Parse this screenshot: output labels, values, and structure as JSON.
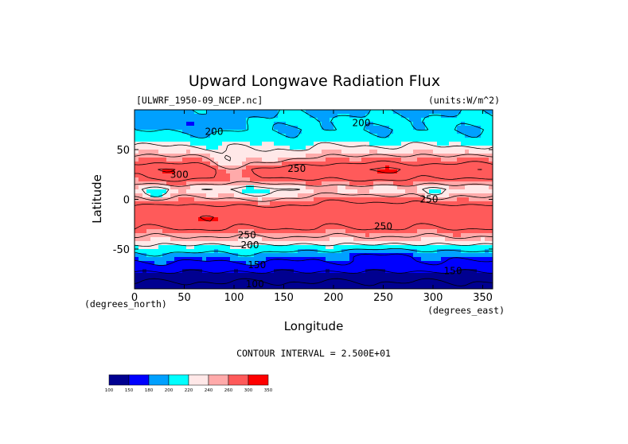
{
  "chart_data": {
    "type": "heatmap",
    "title": "Upward Longwave Radiation Flux",
    "dataset_label": "[ULWRF_1950-09_NCEP.nc]",
    "units_label": "(units:W/m^2)",
    "xlabel": "Longitude",
    "ylabel": "Latitude",
    "x_unit_label": "(degrees_east)",
    "y_unit_label": "(degrees_north)",
    "xlim": [
      0,
      360
    ],
    "ylim": [
      -90,
      90
    ],
    "x_ticks": [
      0,
      50,
      100,
      150,
      200,
      250,
      300,
      350
    ],
    "y_ticks": [
      -50,
      0,
      50
    ],
    "x_tick_labels": [
      "0",
      "50",
      "100",
      "150",
      "200",
      "250",
      "300",
      "350"
    ],
    "y_tick_labels": [
      "-50",
      "0",
      "50"
    ],
    "contour_interval_label": "CONTOUR INTERVAL = 2.500E+01",
    "contour_labels": [
      {
        "text": "200",
        "lon": 80,
        "lat": 68
      },
      {
        "text": "200",
        "lon": 228,
        "lat": 77
      },
      {
        "text": "300",
        "lon": 45,
        "lat": 25
      },
      {
        "text": "250",
        "lon": 163,
        "lat": 31
      },
      {
        "text": "250",
        "lon": 113,
        "lat": -36
      },
      {
        "text": "200",
        "lon": 116,
        "lat": -46
      },
      {
        "text": "250",
        "lon": 250,
        "lat": -27
      },
      {
        "text": "250",
        "lon": 296,
        "lat": 0
      },
      {
        "text": "150",
        "lon": 123,
        "lat": -66
      },
      {
        "text": "150",
        "lon": 320,
        "lat": -72
      },
      {
        "text": "100",
        "lon": 121,
        "lat": -85
      }
    ],
    "color_levels": [
      100,
      150,
      180,
      200,
      220,
      240,
      260,
      300,
      350
    ],
    "color_level_labels": [
      "100",
      "150",
      "180",
      "200",
      "220",
      "240",
      "260",
      "300",
      "350"
    ],
    "colors": [
      "#000090",
      "#0000ff",
      "#00a0ff",
      "#00ffff",
      "#ffe8e8",
      "#ffaaaa",
      "#ff5a5a",
      "#ff0000"
    ],
    "lat_bands": [
      {
        "lat": 90,
        "v": 195
      },
      {
        "lat": 80,
        "v": 205
      },
      {
        "lat": 70,
        "v": 200
      },
      {
        "lat": 60,
        "v": 212
      },
      {
        "lat": 50,
        "v": 232
      },
      {
        "lat": 40,
        "v": 262
      },
      {
        "lat": 30,
        "v": 292
      },
      {
        "lat": 20,
        "v": 272
      },
      {
        "lat": 10,
        "v": 232
      },
      {
        "lat": 0,
        "v": 262
      },
      {
        "lat": -10,
        "v": 288
      },
      {
        "lat": -20,
        "v": 292
      },
      {
        "lat": -30,
        "v": 272
      },
      {
        "lat": -40,
        "v": 242
      },
      {
        "lat": -50,
        "v": 212
      },
      {
        "lat": -60,
        "v": 182
      },
      {
        "lat": -70,
        "v": 158
      },
      {
        "lat": -80,
        "v": 130
      },
      {
        "lat": -90,
        "v": 112
      }
    ]
  }
}
